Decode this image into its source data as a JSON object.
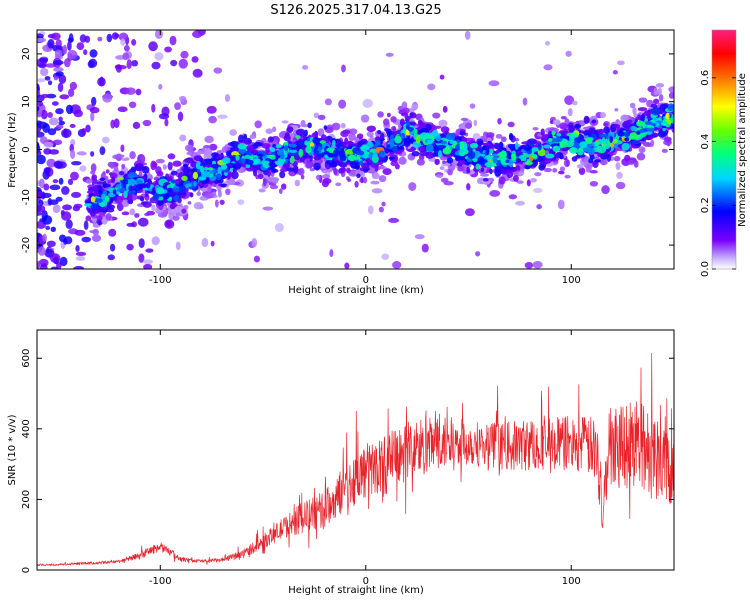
{
  "figure_title": "S126.2025.317.04.13.G25",
  "chart_data": [
    {
      "type": "heatmap",
      "name": "spectrogram",
      "xlabel": "Height of straight line (km)",
      "ylabel": "Frequency (Hz)",
      "xlim": [
        -160,
        150
      ],
      "ylim": [
        -25,
        25
      ],
      "xticks": [
        -100,
        0,
        100
      ],
      "yticks": [
        -20,
        -10,
        0,
        10,
        20
      ],
      "xtick_labels": [
        "-100",
        "0",
        "100"
      ],
      "ytick_labels": [
        "-20",
        "-10",
        "0",
        "10",
        "20"
      ],
      "ridge": {
        "x": [
          -130,
          -120,
          -110,
          -100,
          -90,
          -80,
          -70,
          -60,
          -50,
          -40,
          -30,
          -20,
          -10,
          0,
          10,
          20,
          30,
          40,
          50,
          60,
          70,
          80,
          90,
          100,
          110,
          120,
          130,
          140,
          150
        ],
        "frequency_hz": [
          -11,
          -8,
          -7,
          -9,
          -8,
          -5,
          -4,
          -1,
          -2,
          -1,
          1,
          0,
          -1,
          -1,
          0,
          4,
          2,
          1,
          -1,
          -2,
          -2,
          -1,
          1,
          2,
          1,
          2,
          3,
          6,
          7
        ]
      },
      "colorbar": {
        "label": "Normalized spectral amplitude",
        "range": [
          0.0,
          0.75
        ],
        "ticks": [
          0.0,
          0.2,
          0.4,
          0.6
        ],
        "tick_labels": [
          "0.0",
          "0.2",
          "0.4",
          "0.6"
        ]
      }
    },
    {
      "type": "line",
      "name": "snr",
      "xlabel": "Height of straight line (km)",
      "ylabel": "SNR (10 * v/v)",
      "xlim": [
        -160,
        150
      ],
      "ylim": [
        0,
        680
      ],
      "xticks": [
        -100,
        0,
        100
      ],
      "yticks": [
        0,
        200,
        400,
        600
      ],
      "xtick_labels": [
        "-100",
        "0",
        "100"
      ],
      "ytick_labels": [
        "0",
        "200",
        "400",
        "600"
      ],
      "color": "#e8242a",
      "series": [
        {
          "name": "SNR",
          "x": [
            -160,
            -150,
            -140,
            -130,
            -120,
            -110,
            -105,
            -100,
            -95,
            -90,
            -80,
            -70,
            -60,
            -50,
            -40,
            -30,
            -20,
            -15,
            -10,
            -5,
            0,
            10,
            20,
            30,
            40,
            50,
            60,
            70,
            80,
            90,
            100,
            110,
            113,
            115,
            118,
            120,
            130,
            140,
            150
          ],
          "values": [
            15,
            15,
            18,
            20,
            25,
            40,
            55,
            65,
            50,
            30,
            25,
            28,
            45,
            80,
            120,
            150,
            170,
            200,
            230,
            260,
            280,
            300,
            340,
            350,
            360,
            360,
            355,
            350,
            355,
            360,
            360,
            350,
            320,
            150,
            330,
            370,
            360,
            330,
            300
          ],
          "spread": [
            6,
            6,
            8,
            8,
            10,
            20,
            25,
            25,
            20,
            12,
            10,
            12,
            25,
            40,
            60,
            90,
            110,
            110,
            130,
            150,
            160,
            170,
            180,
            170,
            150,
            130,
            130,
            140,
            150,
            150,
            160,
            170,
            200,
            100,
            220,
            250,
            260,
            260,
            250
          ]
        }
      ]
    }
  ]
}
